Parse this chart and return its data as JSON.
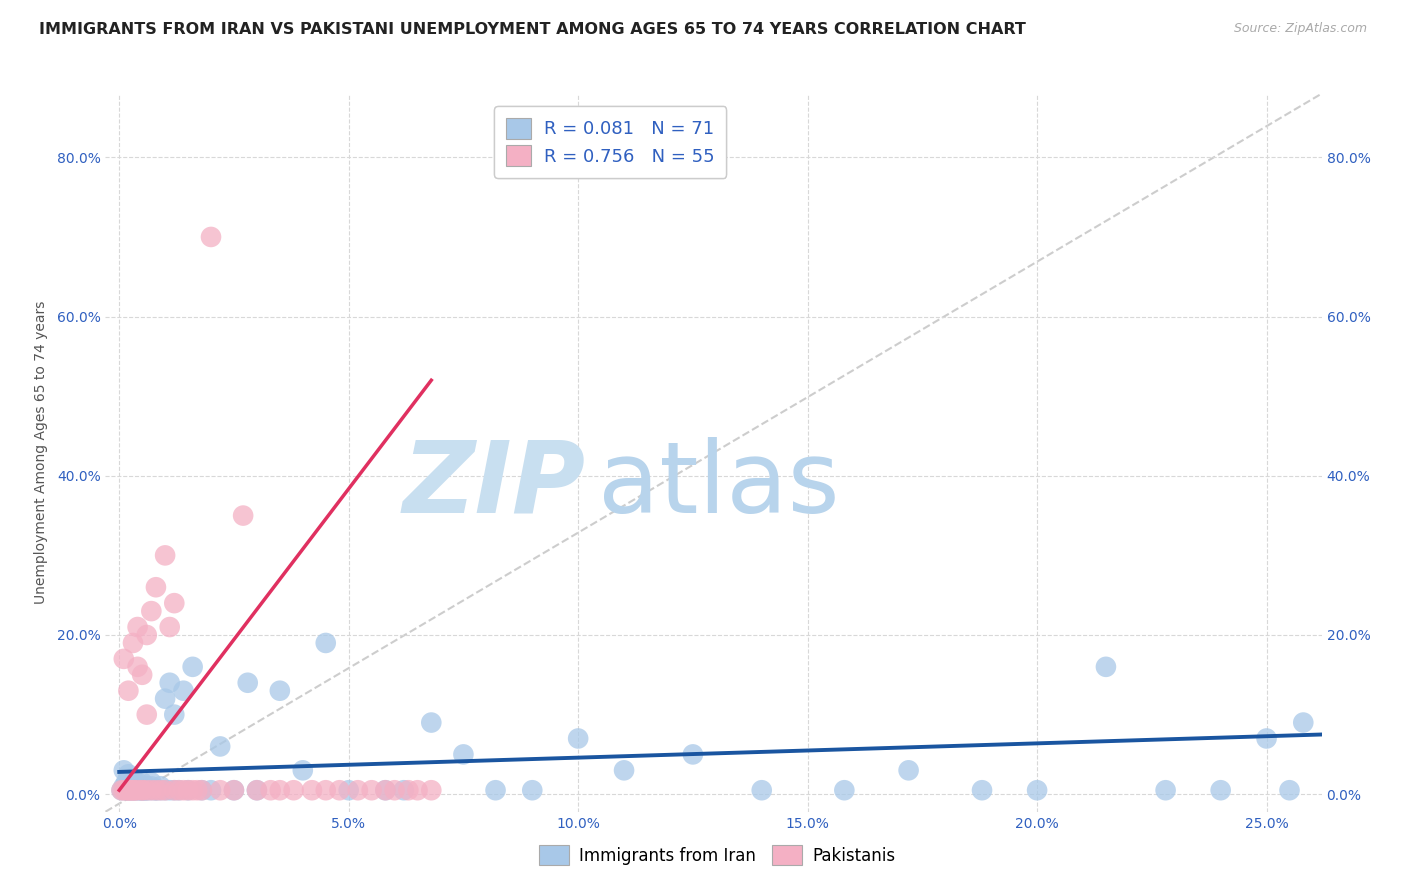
{
  "title": "IMMIGRANTS FROM IRAN VS PAKISTANI UNEMPLOYMENT AMONG AGES 65 TO 74 YEARS CORRELATION CHART",
  "source": "Source: ZipAtlas.com",
  "ylabel_label": "Unemployment Among Ages 65 to 74 years",
  "xlim": [
    -0.003,
    0.262
  ],
  "ylim": [
    -0.022,
    0.88
  ],
  "xlabel_vals": [
    0.0,
    0.05,
    0.1,
    0.15,
    0.2,
    0.25
  ],
  "xlabel_ticks": [
    "0.0%",
    "5.0%",
    "10.0%",
    "15.0%",
    "20.0%",
    "25.0%"
  ],
  "ylabel_vals": [
    0.0,
    0.2,
    0.4,
    0.6,
    0.8
  ],
  "ylabel_ticks": [
    "0.0%",
    "20.0%",
    "40.0%",
    "60.0%",
    "80.0%"
  ],
  "iran_R": 0.081,
  "iran_N": 71,
  "pak_R": 0.756,
  "pak_N": 55,
  "iran_scatter_color": "#a8c8e8",
  "pak_scatter_color": "#f4b0c4",
  "iran_line_color": "#1a55a0",
  "pak_line_color": "#e03060",
  "diag_color": "#c8c8c8",
  "watermark_color": "#daeaf8",
  "background_color": "#ffffff",
  "grid_color": "#d8d8d8",
  "title_color": "#222222",
  "axis_tick_color": "#3060c0",
  "ylabel_color": "#555555",
  "title_fontsize": 11.5,
  "tick_fontsize": 10,
  "legend_upper_fontsize": 13,
  "legend_lower_fontsize": 12,
  "ylabel_fontsize": 10,
  "iran_scatter_x": [
    0.0005,
    0.001,
    0.001,
    0.0015,
    0.0015,
    0.002,
    0.002,
    0.002,
    0.0025,
    0.003,
    0.003,
    0.003,
    0.0035,
    0.004,
    0.004,
    0.004,
    0.0045,
    0.005,
    0.005,
    0.005,
    0.0055,
    0.006,
    0.006,
    0.006,
    0.007,
    0.007,
    0.007,
    0.008,
    0.008,
    0.009,
    0.009,
    0.01,
    0.01,
    0.011,
    0.011,
    0.012,
    0.012,
    0.013,
    0.014,
    0.015,
    0.016,
    0.018,
    0.02,
    0.022,
    0.025,
    0.028,
    0.03,
    0.035,
    0.04,
    0.045,
    0.05,
    0.058,
    0.062,
    0.068,
    0.075,
    0.082,
    0.09,
    0.1,
    0.11,
    0.125,
    0.14,
    0.158,
    0.172,
    0.188,
    0.2,
    0.215,
    0.228,
    0.24,
    0.25,
    0.255,
    0.258
  ],
  "iran_scatter_y": [
    0.005,
    0.01,
    0.03,
    0.005,
    0.015,
    0.005,
    0.01,
    0.025,
    0.005,
    0.01,
    0.005,
    0.02,
    0.005,
    0.015,
    0.005,
    0.01,
    0.005,
    0.005,
    0.015,
    0.005,
    0.005,
    0.005,
    0.01,
    0.005,
    0.01,
    0.005,
    0.015,
    0.005,
    0.005,
    0.005,
    0.01,
    0.005,
    0.12,
    0.005,
    0.14,
    0.005,
    0.1,
    0.005,
    0.13,
    0.005,
    0.16,
    0.005,
    0.005,
    0.06,
    0.005,
    0.14,
    0.005,
    0.13,
    0.03,
    0.19,
    0.005,
    0.005,
    0.005,
    0.09,
    0.05,
    0.005,
    0.005,
    0.07,
    0.03,
    0.05,
    0.005,
    0.005,
    0.03,
    0.005,
    0.005,
    0.16,
    0.005,
    0.005,
    0.07,
    0.005,
    0.09
  ],
  "pak_scatter_x": [
    0.0005,
    0.001,
    0.001,
    0.0015,
    0.002,
    0.002,
    0.002,
    0.0025,
    0.003,
    0.003,
    0.003,
    0.0035,
    0.004,
    0.004,
    0.004,
    0.005,
    0.005,
    0.005,
    0.006,
    0.006,
    0.006,
    0.007,
    0.007,
    0.008,
    0.008,
    0.009,
    0.01,
    0.01,
    0.011,
    0.012,
    0.012,
    0.013,
    0.014,
    0.015,
    0.016,
    0.017,
    0.018,
    0.02,
    0.022,
    0.025,
    0.027,
    0.03,
    0.033,
    0.035,
    0.038,
    0.042,
    0.045,
    0.048,
    0.052,
    0.055,
    0.058,
    0.06,
    0.063,
    0.065,
    0.068
  ],
  "pak_scatter_y": [
    0.005,
    0.005,
    0.17,
    0.005,
    0.005,
    0.13,
    0.005,
    0.005,
    0.005,
    0.19,
    0.005,
    0.005,
    0.21,
    0.005,
    0.16,
    0.005,
    0.15,
    0.005,
    0.1,
    0.2,
    0.005,
    0.005,
    0.23,
    0.005,
    0.26,
    0.005,
    0.005,
    0.3,
    0.21,
    0.005,
    0.24,
    0.005,
    0.005,
    0.005,
    0.005,
    0.005,
    0.005,
    0.7,
    0.005,
    0.005,
    0.35,
    0.005,
    0.005,
    0.005,
    0.005,
    0.005,
    0.005,
    0.005,
    0.005,
    0.005,
    0.005,
    0.005,
    0.005,
    0.005,
    0.005
  ],
  "pak_trend_x": [
    0.0,
    0.068
  ],
  "pak_trend_y": [
    0.005,
    0.52
  ],
  "iran_trend_x": [
    0.0,
    0.262
  ],
  "iran_trend_y": [
    0.028,
    0.075
  ]
}
